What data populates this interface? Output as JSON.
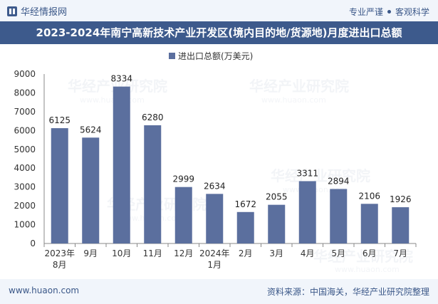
{
  "header": {
    "brand": "华经情报网",
    "tag1": "专业严谨",
    "tag2": "客观科学"
  },
  "title": "2023-2024年南宁高新技术产业开发区(境内目的地/货源地)月度进出口总额",
  "watermark": {
    "text": "华经产业研究院",
    "url": "www.huaon.com"
  },
  "chart_data": {
    "type": "bar",
    "title": "2023-2024年南宁高新技术产业开发区(境内目的地/货源地)月度进出口总额",
    "legend": "进出口总额(万美元)",
    "legend_position": "top-center",
    "categories": [
      [
        "2023年",
        "8月"
      ],
      [
        "9月"
      ],
      [
        "10月"
      ],
      [
        "11月"
      ],
      [
        "12月"
      ],
      [
        "2024年",
        "1月"
      ],
      [
        "2月"
      ],
      [
        "3月"
      ],
      [
        "4月"
      ],
      [
        "5月"
      ],
      [
        "6月"
      ],
      [
        "7月"
      ]
    ],
    "series": [
      {
        "name": "进出口总额(万美元)",
        "values": [
          6125,
          5624,
          8334,
          6280,
          2999,
          2634,
          1672,
          2055,
          3311,
          2894,
          2106,
          1926
        ]
      }
    ],
    "ylim": [
      0,
      9000
    ],
    "yticks": [
      0,
      1000,
      2000,
      3000,
      4000,
      5000,
      6000,
      7000,
      8000,
      9000
    ],
    "xlabel": "",
    "ylabel": "",
    "grid": false,
    "bar_color": "#5b6f9e"
  },
  "footer": {
    "url": "www.huaon.com",
    "source": "资料来源：中国海关，华经产业研究院整理"
  }
}
